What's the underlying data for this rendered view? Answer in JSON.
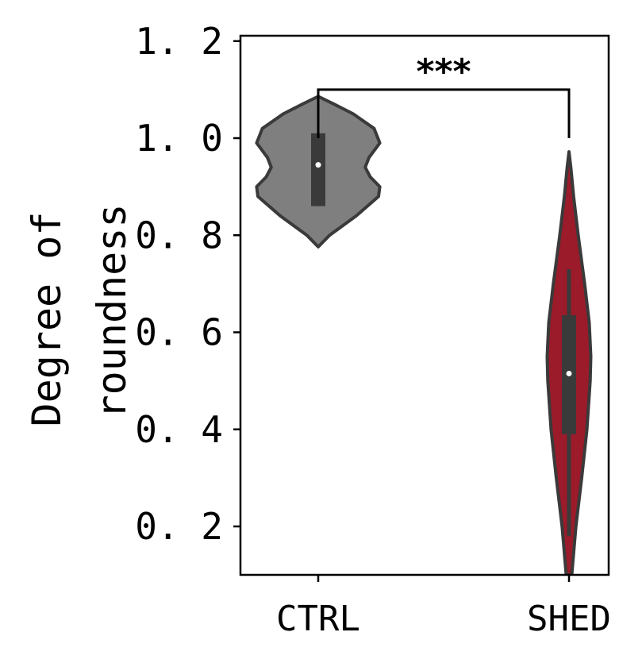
{
  "chart_data": {
    "type": "violin",
    "categories": [
      "CTRL",
      "SHED"
    ],
    "ylabel_lines": [
      "Degree of",
      "roundness"
    ],
    "ylim": [
      0.1,
      1.21
    ],
    "yticks": [
      0.2,
      0.4,
      0.6,
      0.8,
      1.0,
      1.2
    ],
    "ytick_labels": [
      "0. 2",
      "0. 4",
      "0. 6",
      "0. 8",
      "1. 0",
      "1. 2"
    ],
    "grid": false,
    "series": [
      {
        "category": "CTRL",
        "color": "#7f7f7f",
        "median": 0.945,
        "q1": 0.86,
        "q3": 1.01,
        "whisker_low": 0.86,
        "whisker_high": 1.01,
        "density": [
          [
            0.776,
            0.0
          ],
          [
            0.8,
            0.18
          ],
          [
            0.84,
            0.6
          ],
          [
            0.88,
            0.95
          ],
          [
            0.9,
            0.97
          ],
          [
            0.92,
            0.82
          ],
          [
            0.94,
            0.74
          ],
          [
            0.96,
            0.8
          ],
          [
            0.99,
            0.97
          ],
          [
            1.02,
            0.88
          ],
          [
            1.05,
            0.55
          ],
          [
            1.07,
            0.25
          ],
          [
            1.086,
            0.0
          ]
        ]
      },
      {
        "category": "SHED",
        "color": "#9b1b2a",
        "median": 0.515,
        "q1": 0.39,
        "q3": 0.635,
        "whisker_low": 0.18,
        "whisker_high": 0.73,
        "density": [
          [
            0.1,
            0.12
          ],
          [
            0.2,
            0.3
          ],
          [
            0.3,
            0.55
          ],
          [
            0.4,
            0.78
          ],
          [
            0.5,
            0.92
          ],
          [
            0.55,
            0.95
          ],
          [
            0.62,
            0.88
          ],
          [
            0.7,
            0.68
          ],
          [
            0.8,
            0.4
          ],
          [
            0.88,
            0.2
          ],
          [
            0.94,
            0.08
          ],
          [
            0.972,
            0.0
          ]
        ]
      }
    ],
    "significance": {
      "label": "***",
      "from": "CTRL",
      "to": "SHED",
      "y_top": 1.1,
      "y_left_end": 1.0,
      "y_right_end": 1.0
    }
  }
}
